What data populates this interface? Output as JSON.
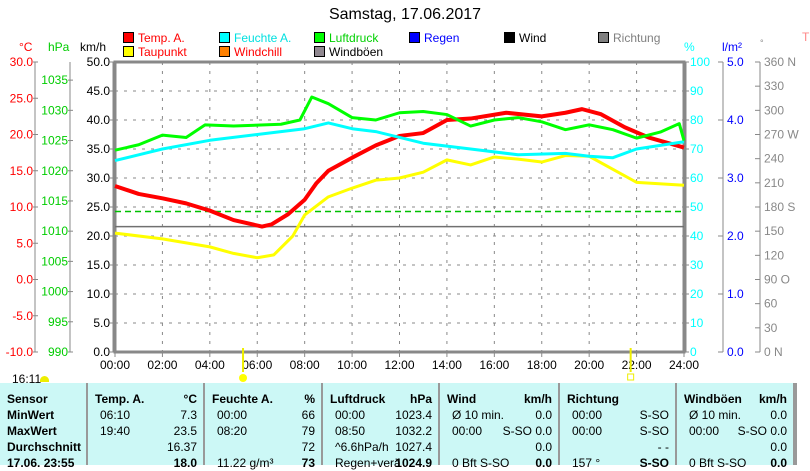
{
  "title": "Samstag, 17.06.2017",
  "legend": [
    {
      "label": "Temp. A.",
      "color": "#ff0000",
      "text_color": "#ff0000"
    },
    {
      "label": "Taupunkt",
      "color": "#ffff00",
      "text_color": "#ff0000"
    },
    {
      "label": "Feuchte A.",
      "color": "#00ffff",
      "text_color": "#00e0e0"
    },
    {
      "label": "Windchill",
      "color": "#ff8000",
      "text_color": "#ff0000"
    },
    {
      "label": "Luftdruck",
      "color": "#00ff00",
      "text_color": "#00d000"
    },
    {
      "label": "Windböen",
      "color": "#908890",
      "text_color": "#000000"
    },
    {
      "label": "Regen",
      "color": "#0000ff",
      "text_color": "#0000ff"
    },
    {
      "label": "Wind",
      "color": "#000000",
      "text_color": "#000000"
    },
    {
      "label": "Richtung",
      "color": "#808080",
      "text_color": "#808080"
    }
  ],
  "axis_units": {
    "temp": "°C",
    "hpa": "hPa",
    "kmh": "km/h",
    "pct": "%",
    "rain": "l/m²",
    "deg": "°",
    "right_edge": "T"
  },
  "clock": "16:11",
  "chart_data": {
    "type": "line",
    "x_ticks": [
      "00:00",
      "02:00",
      "04:00",
      "06:00",
      "08:00",
      "10:00",
      "12:00",
      "14:00",
      "16:00",
      "18:00",
      "20:00",
      "22:00",
      "24:00"
    ],
    "temp_ticks": [
      "30.0",
      "25.0",
      "20.0",
      "15.0",
      "10.0",
      "5.0",
      "0.0",
      "-5.0",
      "-10.0"
    ],
    "hpa_ticks": [
      "1035",
      "1030",
      "1025",
      "1020",
      "1015",
      "1010",
      "1005",
      "1000",
      "995",
      "990"
    ],
    "kmh_ticks": [
      "50.0",
      "45.0",
      "40.0",
      "35.0",
      "30.0",
      "25.0",
      "20.0",
      "15.0",
      "10.0",
      "5.0",
      "0.0"
    ],
    "pct_ticks": [
      "100",
      "90",
      "80",
      "70",
      "60",
      "50",
      "40",
      "30",
      "20",
      "10",
      "0"
    ],
    "rain_ticks": [
      "5.0",
      "4.0",
      "3.0",
      "2.0",
      "1.0",
      "0.0"
    ],
    "deg_ticks": [
      "360 N",
      "330",
      "300",
      "270 W",
      "240",
      "210",
      "180 S",
      "150",
      "120",
      "90  O",
      "60",
      "30",
      "0   N"
    ],
    "xlim": [
      0,
      24
    ],
    "temp_lim": [
      -10,
      30
    ],
    "hpa_lim": [
      990,
      1038
    ],
    "pct_lim": [
      0,
      100
    ],
    "series": [
      {
        "name": "Temp. A.",
        "axis": "temp",
        "color": "#ff0000",
        "points": [
          [
            0,
            12.9
          ],
          [
            1,
            11.8
          ],
          [
            2,
            11.2
          ],
          [
            3,
            10.5
          ],
          [
            4,
            9.5
          ],
          [
            5,
            8.2
          ],
          [
            6.2,
            7.3
          ],
          [
            6.6,
            7.6
          ],
          [
            7.3,
            9
          ],
          [
            8,
            11
          ],
          [
            8.5,
            13.3
          ],
          [
            9,
            15
          ],
          [
            10,
            16.8
          ],
          [
            11,
            18.5
          ],
          [
            12,
            19.8
          ],
          [
            13,
            20.2
          ],
          [
            14,
            22
          ],
          [
            15,
            22.2
          ],
          [
            16.5,
            23
          ],
          [
            18,
            22.5
          ],
          [
            19,
            23
          ],
          [
            19.7,
            23.5
          ],
          [
            20.5,
            22.8
          ],
          [
            21.5,
            21
          ],
          [
            22.5,
            19.6
          ],
          [
            24,
            18.2
          ]
        ]
      },
      {
        "name": "Taupunkt",
        "axis": "temp",
        "color": "#ffff00",
        "points": [
          [
            0,
            6.4
          ],
          [
            2,
            5.6
          ],
          [
            4,
            4.5
          ],
          [
            5,
            3.6
          ],
          [
            6,
            3.0
          ],
          [
            6.7,
            3.4
          ],
          [
            7.5,
            6
          ],
          [
            8,
            8.9
          ],
          [
            9,
            11.4
          ],
          [
            10,
            12.6
          ],
          [
            11,
            13.7
          ],
          [
            12,
            14
          ],
          [
            13,
            14.8
          ],
          [
            14,
            16.5
          ],
          [
            15,
            15.8
          ],
          [
            16,
            16.9
          ],
          [
            17,
            16.6
          ],
          [
            18,
            16.2
          ],
          [
            19,
            17.1
          ],
          [
            20,
            17
          ],
          [
            21,
            15.2
          ],
          [
            22,
            13.4
          ],
          [
            24,
            13
          ]
        ]
      },
      {
        "name": "Feuchte A.",
        "axis": "pct",
        "color": "#00ffff",
        "points": [
          [
            0,
            66
          ],
          [
            1,
            68
          ],
          [
            2,
            70
          ],
          [
            4,
            73
          ],
          [
            6,
            75
          ],
          [
            8,
            77
          ],
          [
            9,
            79
          ],
          [
            10,
            77
          ],
          [
            11,
            76
          ],
          [
            13,
            72
          ],
          [
            15,
            70
          ],
          [
            17,
            68
          ],
          [
            19,
            68.5
          ],
          [
            20,
            67.5
          ],
          [
            21,
            67
          ],
          [
            22,
            70
          ],
          [
            24,
            72.5
          ]
        ]
      },
      {
        "name": "Luftdruck",
        "axis": "hpa",
        "color": "#00ff00",
        "points": [
          [
            0,
            1023.4
          ],
          [
            1,
            1024.3
          ],
          [
            2,
            1025.9
          ],
          [
            3,
            1025.5
          ],
          [
            3.8,
            1027.6
          ],
          [
            5,
            1027.4
          ],
          [
            7,
            1027.7
          ],
          [
            7.8,
            1028.4
          ],
          [
            8.3,
            1032.2
          ],
          [
            9,
            1031.1
          ],
          [
            10,
            1028.8
          ],
          [
            11,
            1028.4
          ],
          [
            12,
            1029.6
          ],
          [
            13,
            1029.8
          ],
          [
            14,
            1029.3
          ],
          [
            15,
            1027.4
          ],
          [
            16,
            1028.4
          ],
          [
            17,
            1028.8
          ],
          [
            18,
            1028.1
          ],
          [
            19,
            1026.8
          ],
          [
            20,
            1027.6
          ],
          [
            21,
            1026.8
          ],
          [
            22,
            1025.4
          ],
          [
            23,
            1026.4
          ],
          [
            23.8,
            1027.8
          ],
          [
            24,
            1025
          ]
        ]
      }
    ],
    "reference_lines": [
      {
        "axis": "hpa",
        "value": 1013.25,
        "style": "dashed",
        "color": "#00c000"
      },
      {
        "axis": "temp",
        "value": 7.3,
        "style": "solid",
        "color": "#707070"
      }
    ],
    "sunrise": 5.4,
    "sunset": 21.75
  },
  "table": {
    "columns": [
      {
        "header": "Sensor",
        "unit": "",
        "rows": [
          {
            "l": "MinWert",
            "r": ""
          },
          {
            "l": "MaxWert",
            "r": ""
          },
          {
            "l": "Durchschnitt",
            "r": ""
          },
          {
            "l": "17.06. 23:55",
            "r": ""
          }
        ]
      },
      {
        "header": "Temp. A.",
        "unit": "°C",
        "rows": [
          {
            "l": "06:10",
            "r": "7.3"
          },
          {
            "l": "19:40",
            "r": "23.5"
          },
          {
            "l": "",
            "r": "16.37"
          },
          {
            "l": "",
            "r": "18.0"
          }
        ]
      },
      {
        "header": "Feuchte A.",
        "unit": "%",
        "rows": [
          {
            "l": "00:00",
            "r": "66"
          },
          {
            "l": "08:20",
            "r": "79"
          },
          {
            "l": "",
            "r": "72"
          },
          {
            "l": "11.22 g/m³",
            "r": "73"
          }
        ]
      },
      {
        "header": "Luftdruck",
        "unit": "hPa",
        "rows": [
          {
            "l": "00:00",
            "r": "1023.4"
          },
          {
            "l": "08:50",
            "r": "1032.2"
          },
          {
            "l": "^6.6hPa/h",
            "r": "1027.4"
          },
          {
            "l": "Regen+verä",
            "r": "1024.9"
          }
        ]
      },
      {
        "header": "Wind",
        "unit": "km/h",
        "rows": [
          {
            "l": "Ø 10 min.",
            "r": "0.0"
          },
          {
            "l": "00:00",
            "r": "S-SO 0.0"
          },
          {
            "l": "",
            "r": "0.0"
          },
          {
            "l": "0 Bft S-SO",
            "r": "0.0"
          }
        ]
      },
      {
        "header": "Richtung",
        "unit": "",
        "rows": [
          {
            "l": "00:00",
            "r": "S-SO"
          },
          {
            "l": "00:00",
            "r": "S-SO"
          },
          {
            "l": "",
            "r": "- -"
          },
          {
            "l": "157 °",
            "r": "S-SO"
          }
        ]
      },
      {
        "header": "Windböen",
        "unit": "km/h",
        "rows": [
          {
            "l": "Ø 10 min.",
            "r": "0.0"
          },
          {
            "l": "00:00",
            "r": "S-SO 0.0"
          },
          {
            "l": "",
            "r": "0.0"
          },
          {
            "l": "0 Bft S-SO",
            "r": "0.0"
          }
        ]
      }
    ]
  }
}
